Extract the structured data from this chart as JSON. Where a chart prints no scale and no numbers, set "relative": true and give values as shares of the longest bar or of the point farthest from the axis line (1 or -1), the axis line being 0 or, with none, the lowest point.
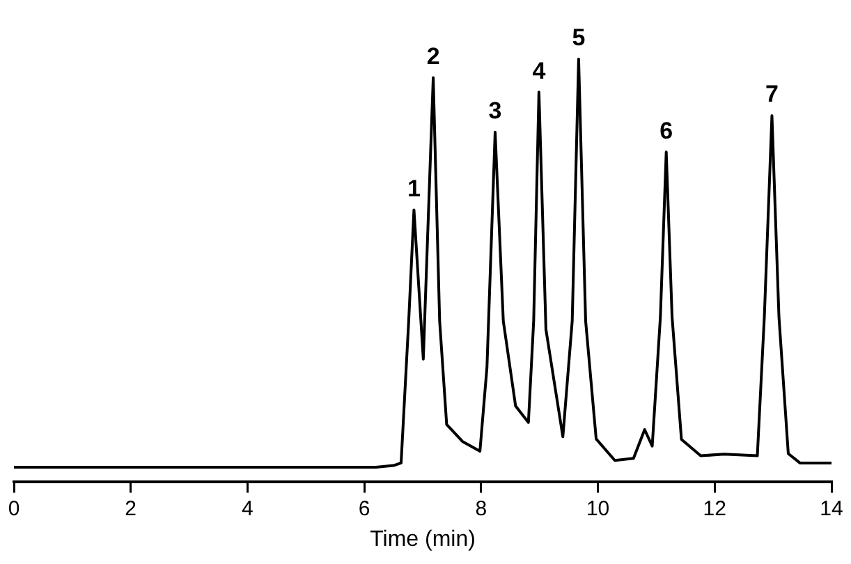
{
  "chart_data": {
    "type": "line",
    "relative": true,
    "xlabel": "Time (min)",
    "xlim": [
      0,
      14
    ],
    "xticks": [
      0,
      2,
      4,
      6,
      8,
      10,
      12,
      14
    ],
    "grid": false,
    "legend": false,
    "marker": "none",
    "line_style": "solid",
    "series": [
      {
        "color": "#000000",
        "x": [
          0,
          3,
          6.2,
          6.5,
          6.63,
          6.76,
          6.85,
          7.01,
          7.18,
          7.29,
          7.41,
          7.68,
          7.98,
          8.1,
          8.24,
          8.38,
          8.59,
          8.81,
          8.9,
          8.99,
          9.11,
          9.4,
          9.56,
          9.67,
          9.79,
          9.97,
          10.29,
          10.61,
          10.8,
          10.93,
          11.07,
          11.17,
          11.27,
          11.43,
          11.76,
          12.16,
          12.73,
          12.85,
          12.98,
          13.1,
          13.26,
          13.46,
          14
        ],
        "values": [
          0.034,
          0.034,
          0.034,
          0.038,
          0.044,
          0.38,
          0.643,
          0.29,
          0.956,
          0.38,
          0.135,
          0.095,
          0.072,
          0.27,
          0.827,
          0.38,
          0.179,
          0.14,
          0.38,
          0.922,
          0.36,
          0.106,
          0.38,
          1.0,
          0.38,
          0.101,
          0.05,
          0.055,
          0.123,
          0.084,
          0.39,
          0.78,
          0.39,
          0.1,
          0.061,
          0.065,
          0.061,
          0.39,
          0.866,
          0.39,
          0.066,
          0.044,
          0.044
        ]
      }
    ],
    "annotations": [
      {
        "text": "1",
        "x": 6.85,
        "y": 0.643
      },
      {
        "text": "2",
        "x": 7.18,
        "y": 0.956
      },
      {
        "text": "3",
        "x": 8.24,
        "y": 0.827
      },
      {
        "text": "4",
        "x": 8.99,
        "y": 0.922
      },
      {
        "text": "5",
        "x": 9.67,
        "y": 1.0
      },
      {
        "text": "6",
        "x": 11.17,
        "y": 0.78
      },
      {
        "text": "7",
        "x": 12.98,
        "y": 0.866
      }
    ]
  }
}
